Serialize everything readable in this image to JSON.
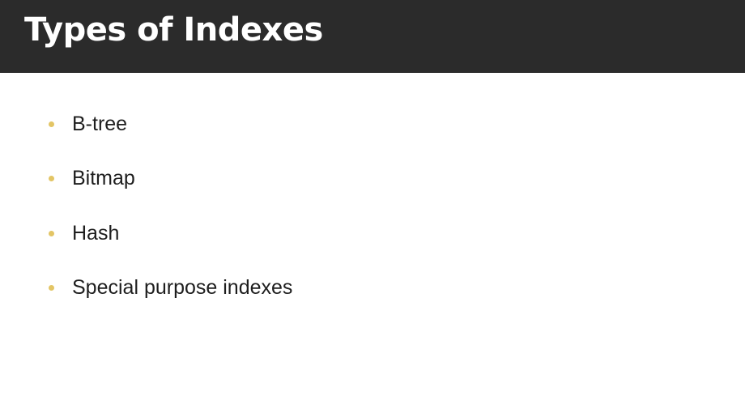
{
  "slide": {
    "title": "Types of Indexes",
    "bullets": [
      {
        "text": "B-tree"
      },
      {
        "text": "Bitmap"
      },
      {
        "text": "Hash"
      },
      {
        "text": "Special purpose indexes"
      }
    ]
  },
  "colors": {
    "header_background": "#2b2b2b",
    "title_text": "#ffffff",
    "bullet_marker": "#e3c565",
    "body_text": "#1e1e1e",
    "page_background": "#ffffff"
  }
}
